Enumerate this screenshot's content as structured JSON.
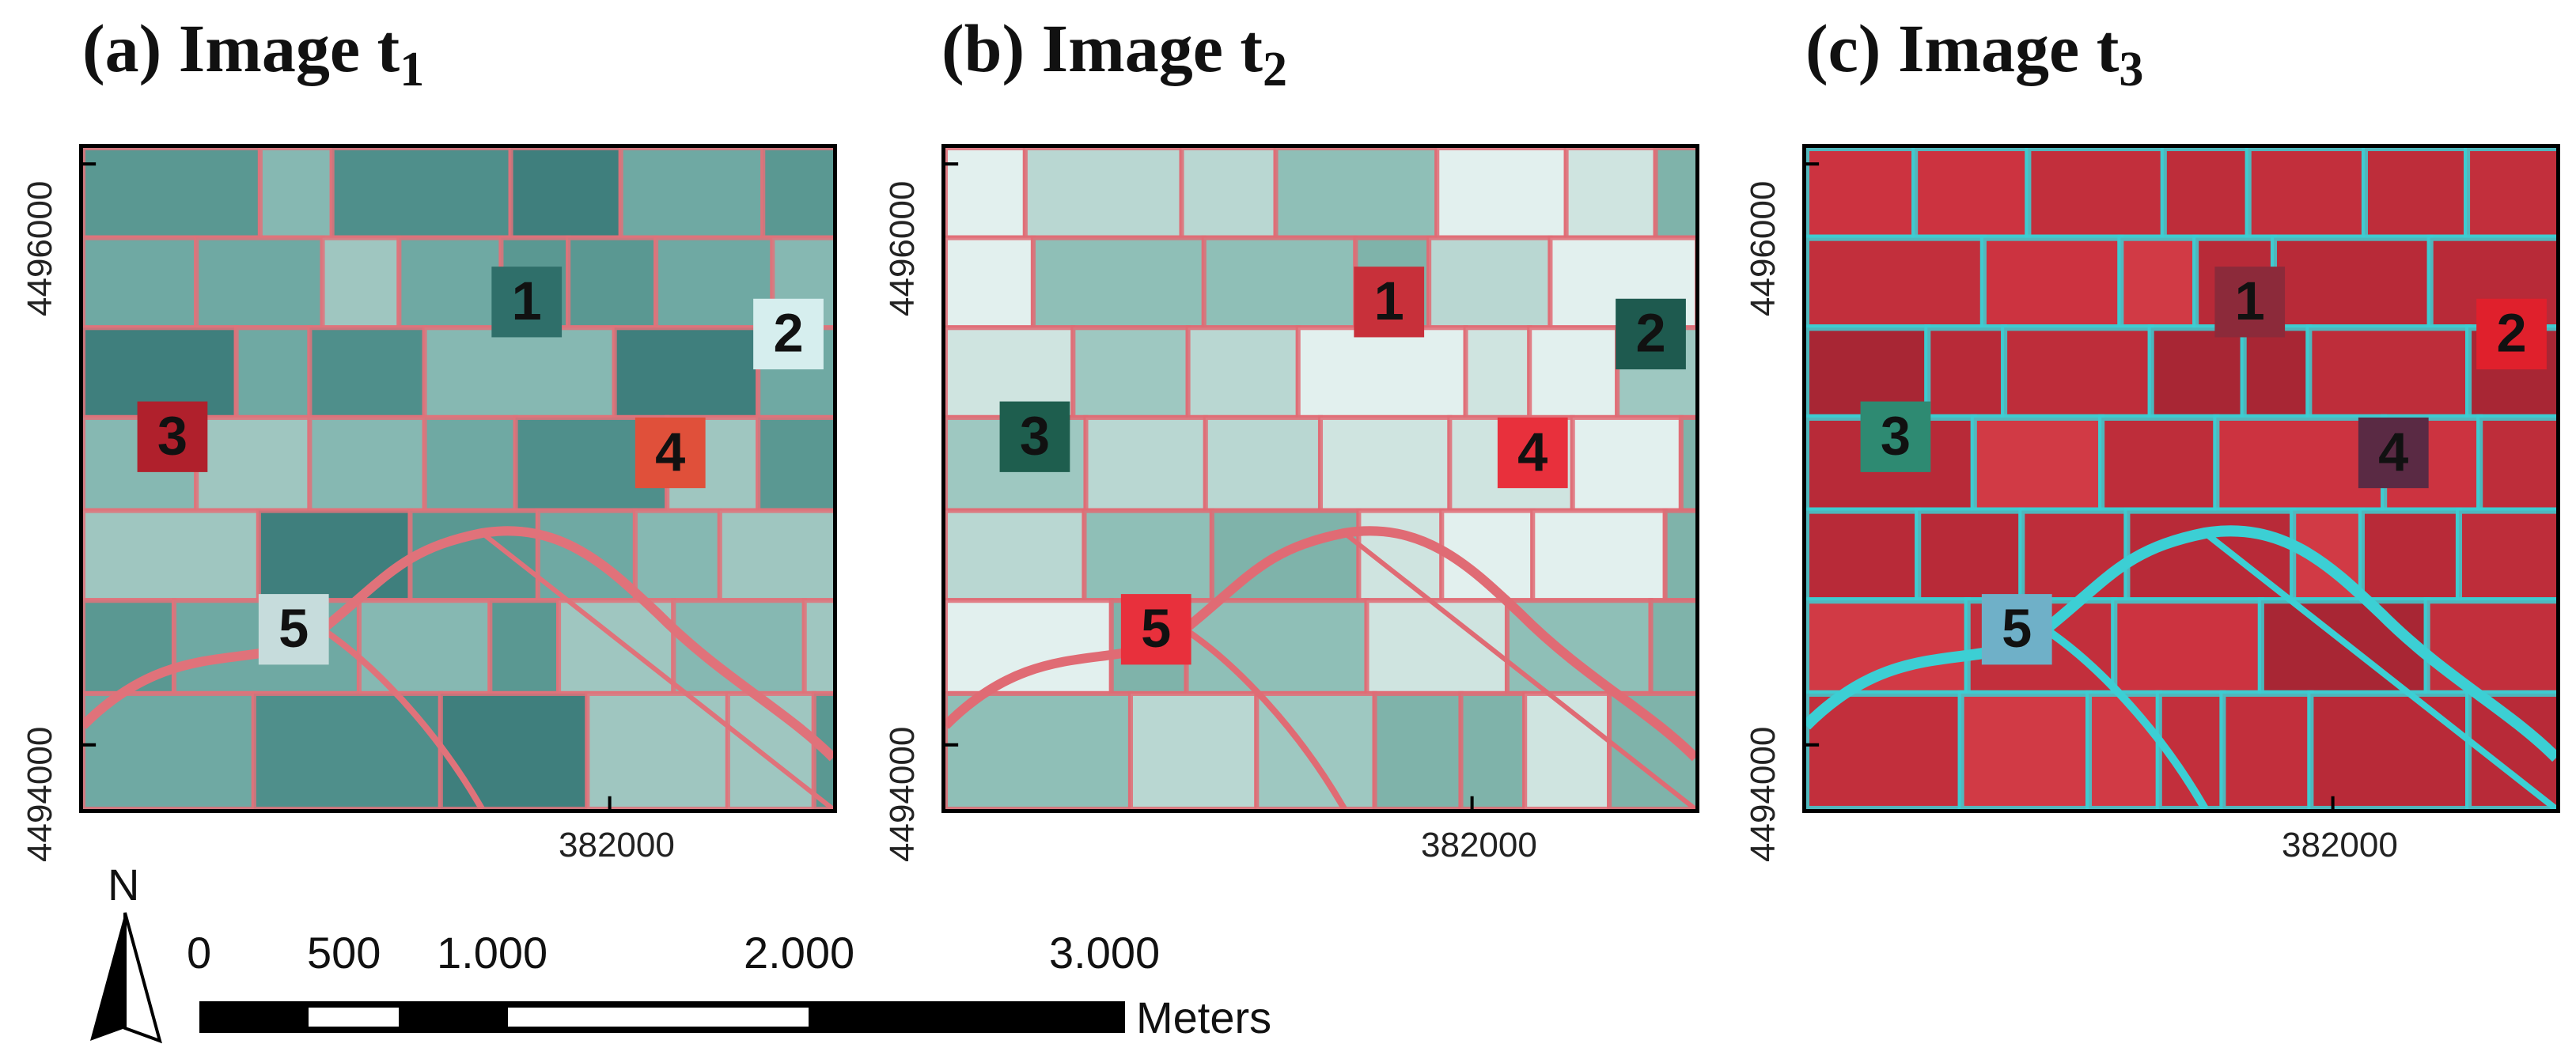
{
  "panels": [
    {
      "id": "a",
      "title": "(a) Image t",
      "subscript": "1",
      "theme": "t1"
    },
    {
      "id": "b",
      "title": "(b) Image t",
      "subscript": "2",
      "theme": "t2"
    },
    {
      "id": "c",
      "title": "(c) Image t",
      "subscript": "3",
      "theme": "t3"
    }
  ],
  "axis": {
    "y_top": "4496000",
    "y_bottom": "4494000",
    "x_tick": "382000"
  },
  "field_labels": [
    "1",
    "2",
    "3",
    "4",
    "5"
  ],
  "north": "N",
  "scalebar": {
    "ticks": [
      "0",
      "500",
      "1.000",
      "2.000",
      "3.000"
    ],
    "unit": "Meters"
  },
  "colors": {
    "red": "#e8323c",
    "teal": "#2f8f86",
    "cyan": "#2ad6e0",
    "dark_red": "#9a1a28"
  }
}
